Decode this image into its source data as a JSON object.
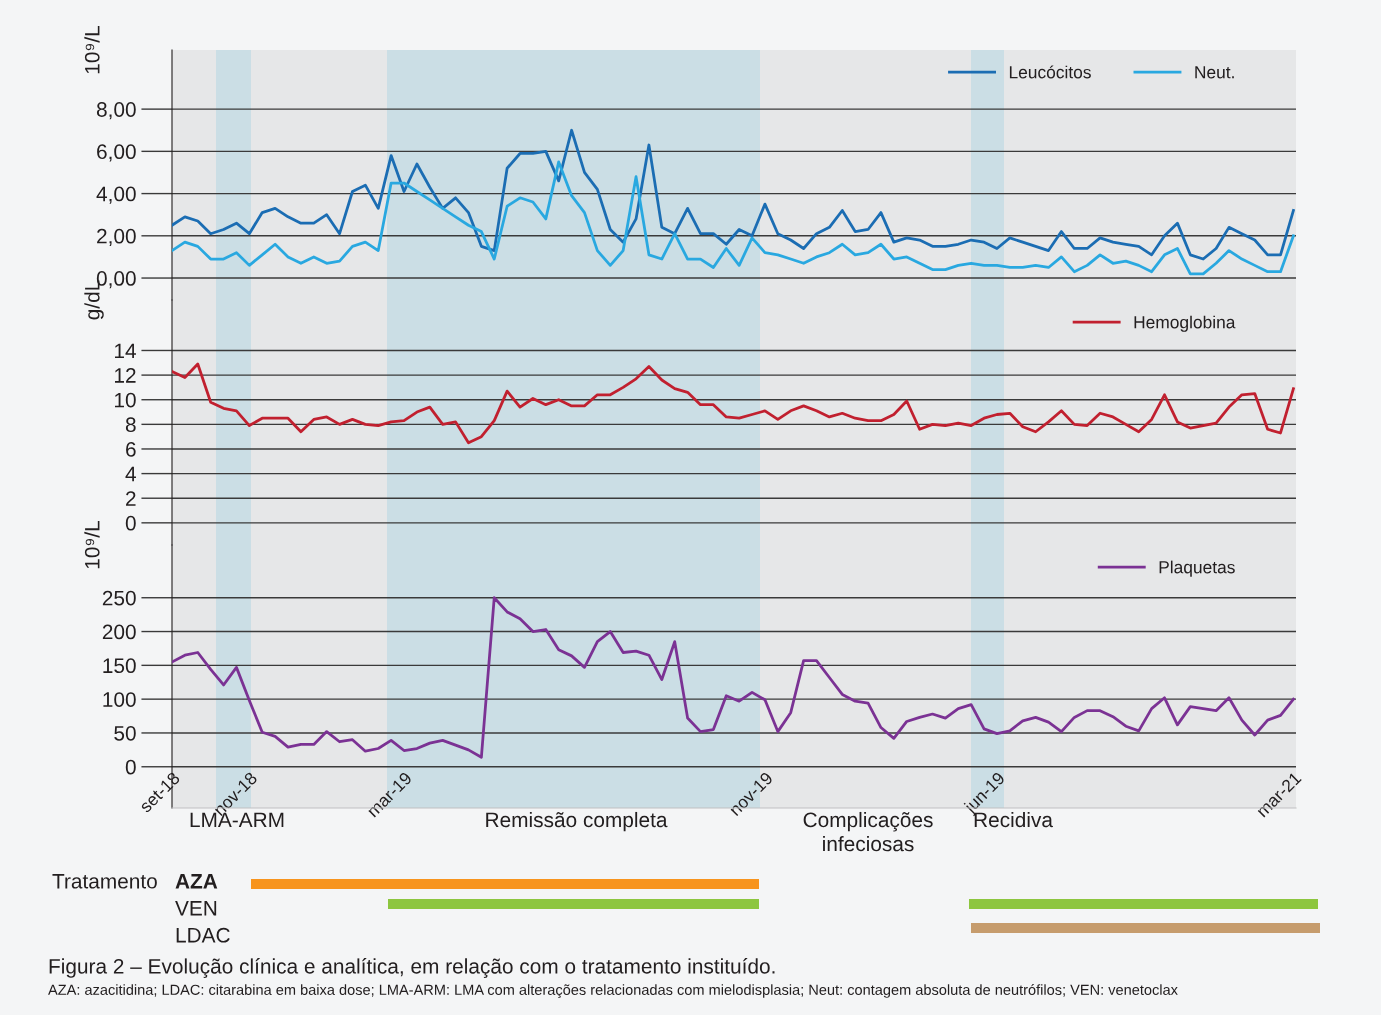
{
  "chart_data": [
    {
      "type": "line",
      "ylabel": "10⁹/L",
      "categories": [
        null,
        null,
        null,
        null,
        null,
        null,
        null,
        null,
        null,
        null,
        null,
        null,
        null,
        null,
        null,
        null,
        null,
        null,
        null,
        null,
        null,
        null,
        null,
        null,
        null,
        null,
        null,
        null,
        null,
        null,
        null,
        null,
        null,
        null,
        null,
        null,
        null,
        null,
        null,
        null,
        null,
        null,
        null,
        null,
        null,
        null,
        null,
        null,
        null,
        null,
        null,
        null,
        null,
        null,
        null,
        null,
        null,
        null,
        null,
        null,
        null,
        null,
        null,
        null,
        null,
        null,
        null,
        null,
        null,
        null,
        null,
        null,
        null,
        null,
        null,
        null,
        null,
        null,
        null,
        null,
        null,
        null,
        null,
        null,
        null,
        null,
        null,
        null
      ],
      "ylim": [
        -1.04,
        10.8
      ],
      "yticks": [
        {
          "value": 0,
          "label": "0,00"
        },
        {
          "value": 2,
          "label": "2,00"
        },
        {
          "value": 4,
          "label": "4,00"
        },
        {
          "value": 6,
          "label": "6,00"
        },
        {
          "value": 8,
          "label": "8,00"
        }
      ],
      "tick_labels": "y",
      "grid": "y",
      "legend": "top right",
      "series": [
        {
          "name": "Leucócitos",
          "color": "#1b6db3",
          "values": [
            2.5,
            2.9,
            2.7,
            2.1,
            2.3,
            2.6,
            2.1,
            3.1,
            3.3,
            2.9,
            2.6,
            2.6,
            3.0,
            2.1,
            4.1,
            4.4,
            3.3,
            5.8,
            4.1,
            5.4,
            4.3,
            3.3,
            3.8,
            3.1,
            1.5,
            1.3,
            5.2,
            5.9,
            5.9,
            6.0,
            4.6,
            7.0,
            5.0,
            4.2,
            2.3,
            1.7,
            2.8,
            6.3,
            2.4,
            2.1,
            3.3,
            2.1,
            2.1,
            1.6,
            2.3,
            2.0,
            3.5,
            2.1,
            1.8,
            1.4,
            2.1,
            2.4,
            3.2,
            2.2,
            2.3,
            3.1,
            1.7,
            1.9,
            1.8,
            1.5,
            1.5,
            1.6,
            1.8,
            1.7,
            1.4,
            1.9,
            1.7,
            1.5,
            1.3,
            2.2,
            1.4,
            1.4,
            1.9,
            1.7,
            1.6,
            1.5,
            1.1,
            2.0,
            2.6,
            1.1,
            0.9,
            1.4,
            2.4,
            2.1,
            1.8,
            1.1,
            1.1,
            3.2
          ]
        },
        {
          "name": "Neut.",
          "color": "#29a8e0",
          "values": [
            1.3,
            1.7,
            1.5,
            0.9,
            0.9,
            1.2,
            0.6,
            1.1,
            1.6,
            1.0,
            0.7,
            1.0,
            0.7,
            0.8,
            1.5,
            1.7,
            1.3,
            4.5,
            4.5,
            4.1,
            3.7,
            3.3,
            2.9,
            2.5,
            2.2,
            0.9,
            3.4,
            3.8,
            3.6,
            2.8,
            5.5,
            3.9,
            3.1,
            1.3,
            0.6,
            1.3,
            4.8,
            1.1,
            0.9,
            2.1,
            0.9,
            0.9,
            0.5,
            1.4,
            0.6,
            1.9,
            1.2,
            1.1,
            0.9,
            0.7,
            1.0,
            1.2,
            1.6,
            1.1,
            1.2,
            1.6,
            0.9,
            1.0,
            0.7,
            0.4,
            0.4,
            0.6,
            0.7,
            0.6,
            0.6,
            0.5,
            0.5,
            0.6,
            0.5,
            1.0,
            0.3,
            0.6,
            1.1,
            0.7,
            0.8,
            0.6,
            0.3,
            1.1,
            1.4,
            0.2,
            0.2,
            0.7,
            1.3,
            0.9,
            0.6,
            0.3,
            0.3,
            2.0
          ]
        }
      ]
    },
    {
      "type": "line",
      "ylabel": "g/dL",
      "categories": [
        null,
        null,
        null,
        null,
        null,
        null,
        null,
        null,
        null,
        null,
        null,
        null,
        null,
        null,
        null,
        null,
        null,
        null,
        null,
        null,
        null,
        null,
        null,
        null,
        null,
        null,
        null,
        null,
        null,
        null,
        null,
        null,
        null,
        null,
        null,
        null,
        null,
        null,
        null,
        null,
        null,
        null,
        null,
        null,
        null,
        null,
        null,
        null,
        null,
        null,
        null,
        null,
        null,
        null,
        null,
        null,
        null,
        null,
        null,
        null,
        null,
        null,
        null,
        null,
        null,
        null,
        null,
        null,
        null,
        null,
        null,
        null,
        null,
        null,
        null,
        null,
        null,
        null,
        null,
        null,
        null,
        null,
        null,
        null,
        null,
        null,
        null,
        null
      ],
      "ylim": [
        -1.8,
        18.1
      ],
      "yticks": [
        0,
        2,
        4,
        6,
        8,
        10,
        12,
        14
      ],
      "tick_labels": "y",
      "grid": "y",
      "legend": "top right",
      "series": [
        {
          "name": "Hemoglobina",
          "color": "#c1202f",
          "values": [
            12.3,
            11.8,
            12.9,
            9.8,
            9.3,
            9.1,
            7.9,
            8.5,
            8.5,
            8.5,
            7.4,
            8.4,
            8.6,
            8.0,
            8.4,
            8.0,
            7.9,
            8.2,
            8.3,
            9.0,
            9.4,
            8.0,
            8.2,
            6.5,
            7.0,
            8.3,
            10.7,
            9.4,
            10.1,
            9.6,
            10.0,
            9.5,
            9.5,
            10.4,
            10.4,
            11.0,
            11.7,
            12.7,
            11.6,
            10.9,
            10.6,
            9.6,
            9.6,
            8.6,
            8.5,
            8.8,
            9.1,
            8.4,
            9.1,
            9.5,
            9.1,
            8.6,
            8.9,
            8.5,
            8.3,
            8.3,
            8.8,
            9.9,
            7.6,
            8.0,
            7.9,
            8.1,
            7.9,
            8.5,
            8.8,
            8.9,
            7.8,
            7.4,
            8.2,
            9.1,
            8.0,
            7.9,
            8.9,
            8.6,
            8.0,
            7.4,
            8.4,
            10.4,
            8.2,
            7.7,
            7.9,
            8.1,
            9.4,
            10.4,
            10.5,
            7.6,
            7.3,
            10.9
          ]
        }
      ]
    },
    {
      "type": "line",
      "ylabel": "10⁹/L",
      "categories": [
        "set-18",
        null,
        null,
        null,
        null,
        null,
        "nov-18",
        null,
        null,
        null,
        null,
        null,
        null,
        null,
        null,
        null,
        null,
        null,
        "mar-19",
        null,
        null,
        null,
        null,
        null,
        null,
        null,
        null,
        null,
        null,
        null,
        null,
        null,
        null,
        null,
        null,
        null,
        null,
        null,
        null,
        null,
        null,
        null,
        null,
        null,
        null,
        null,
        "nov-19",
        null,
        null,
        null,
        null,
        null,
        null,
        null,
        null,
        null,
        null,
        null,
        null,
        null,
        null,
        null,
        null,
        null,
        "jun-19",
        null,
        null,
        null,
        null,
        null,
        null,
        null,
        null,
        null,
        null,
        null,
        null,
        null,
        null,
        null,
        null,
        null,
        null,
        null,
        null,
        null,
        null,
        "mar-21"
      ],
      "ylim": [
        -61,
        328
      ],
      "yticks": [
        0,
        50,
        100,
        150,
        200,
        250
      ],
      "grid": "y",
      "legend": "top right",
      "annotations": [
        "LMA-ARM",
        "Remissão completa",
        "Complicações infeciosas",
        "Recidiva"
      ],
      "series": [
        {
          "name": "Plaquetas",
          "color": "#7b3294",
          "values": [
            155,
            165,
            169,
            144,
            121,
            147,
            98,
            51,
            45,
            29,
            33,
            33,
            52,
            37,
            40,
            23,
            27,
            39,
            24,
            27,
            35,
            39,
            32,
            25,
            14,
            250,
            229,
            219,
            200,
            203,
            173,
            164,
            147,
            185,
            200,
            169,
            171,
            165,
            129,
            185,
            72,
            52,
            55,
            105,
            97,
            110,
            99,
            52,
            80,
            157,
            157,
            132,
            107,
            97,
            94,
            58,
            42,
            67,
            73,
            78,
            72,
            86,
            92,
            56,
            49,
            53,
            68,
            73,
            66,
            52,
            73,
            83,
            83,
            74,
            60,
            53,
            86,
            102,
            62,
            89,
            86,
            83,
            102,
            69,
            47,
            69,
            76,
            100
          ]
        }
      ]
    },
    {
      "type": "other",
      "annotations": [
        "Tratamento",
        "AZA",
        "VEN",
        "LDAC",
        "Figura 2 – Evolução clínica e analítica, em relação com o tratamento instituído.",
        "AZA: azacitidina; LDAC: citarabina em baixa dose; LMA-ARM: LMA com alterações relacionadas com mielodisplasia; Neut: contagem absoluta de neutrófilos; VEN: venetoclax"
      ]
    }
  ]
}
